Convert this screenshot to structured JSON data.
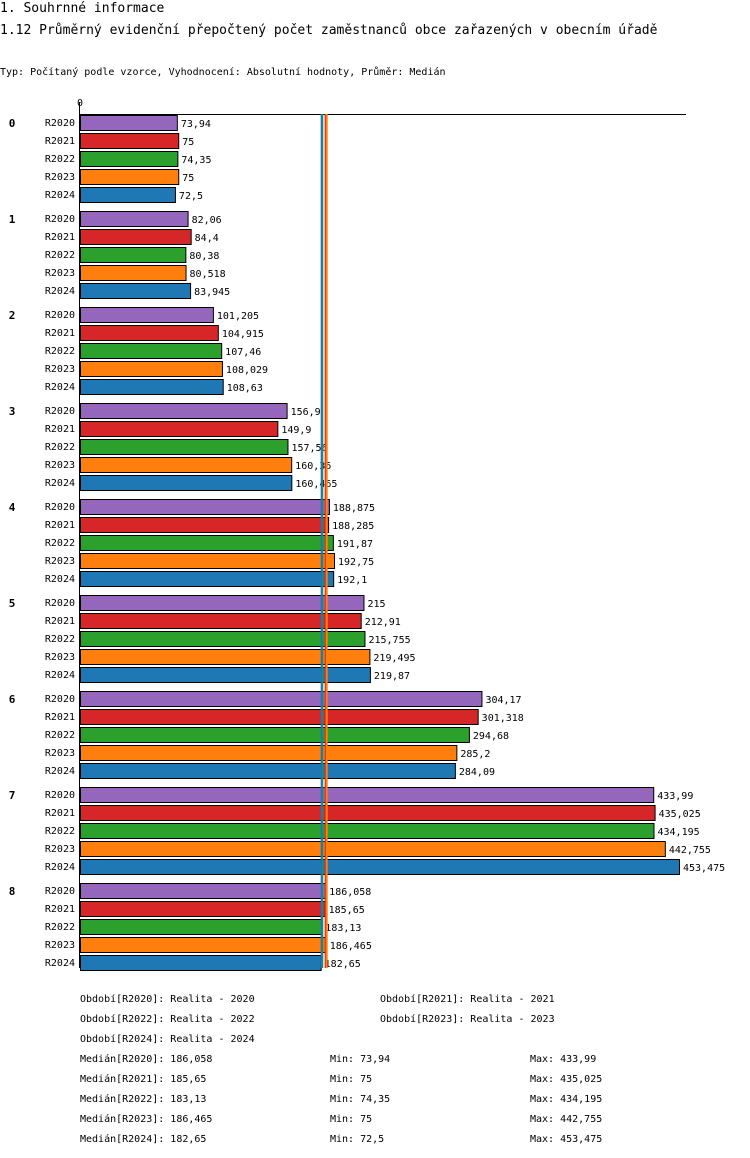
{
  "header": {
    "section_title": "1. Souhrnné informace",
    "chart_title": "1.12 Průměrný evidenční přepočtený počet zaměstnanců obce zařazených v obecním úřadě",
    "subtitle": "Typ: Počítaný podle vzorce, Vyhodnocení: Absolutní hodnoty, Průměr: Medián"
  },
  "chart_data": {
    "type": "bar",
    "orientation": "horizontal",
    "title": "1.12 Průměrný evidenční přepočtený počet zaměstnanců obce zařazených v obecním úřadě",
    "axis_zero_label": "0",
    "categories": [
      "0",
      "1",
      "2",
      "3",
      "4",
      "5",
      "6",
      "7",
      "8"
    ],
    "series": [
      {
        "name": "R2020",
        "color": "#9467bd",
        "values": [
          73.94,
          82.06,
          101.205,
          156.9,
          188.875,
          215,
          304.17,
          433.99,
          186.058
        ],
        "labels": [
          "73,94",
          "82,06",
          "101,205",
          "156,9",
          "188,875",
          "215",
          "304,17",
          "433,99",
          "186,058"
        ]
      },
      {
        "name": "R2021",
        "color": "#d62728",
        "values": [
          75,
          84.4,
          104.915,
          149.9,
          188.285,
          212.91,
          301.318,
          435.025,
          185.65
        ],
        "labels": [
          "75",
          "84,4",
          "104,915",
          "149,9",
          "188,285",
          "212,91",
          "301,318",
          "435,025",
          "185,65"
        ]
      },
      {
        "name": "R2022",
        "color": "#2ca02c",
        "values": [
          74.35,
          80.38,
          107.46,
          157.56,
          191.87,
          215.755,
          294.68,
          434.195,
          183.13
        ],
        "labels": [
          "74,35",
          "80,38",
          "107,46",
          "157,56",
          "191,87",
          "215,755",
          "294,68",
          "434,195",
          "183,13"
        ]
      },
      {
        "name": "R2023",
        "color": "#ff7f0e",
        "values": [
          75,
          80.518,
          108.029,
          160.36,
          192.75,
          219.495,
          285.2,
          442.755,
          186.465
        ],
        "labels": [
          "75",
          "80,518",
          "108,029",
          "160,36",
          "192,75",
          "219,495",
          "285,2",
          "442,755",
          "186,465"
        ]
      },
      {
        "name": "R2024",
        "color": "#1f77b4",
        "values": [
          72.5,
          83.945,
          108.63,
          160.465,
          192.1,
          219.87,
          284.09,
          453.475,
          182.65
        ],
        "labels": [
          "72,5",
          "83,945",
          "108,63",
          "160,465",
          "192,1",
          "219,87",
          "284,09",
          "453,475",
          "182,65"
        ]
      }
    ],
    "medians": [
      {
        "series": "R2020",
        "value": 186.058
      },
      {
        "series": "R2021",
        "value": 185.65
      },
      {
        "series": "R2022",
        "value": 183.13
      },
      {
        "series": "R2023",
        "value": 186.465
      },
      {
        "series": "R2024",
        "value": 182.65
      }
    ],
    "xlim": [
      0,
      453.475
    ]
  },
  "legend": {
    "periods": [
      "Období[R2020]: Realita - 2020",
      "Období[R2021]: Realita - 2021",
      "Období[R2022]: Realita - 2022",
      "Období[R2023]: Realita - 2023",
      "Období[R2024]: Realita - 2024"
    ],
    "stats": [
      {
        "median": "Medián[R2020]: 186,058",
        "min": "Min: 73,94",
        "max": "Max: 433,99"
      },
      {
        "median": "Medián[R2021]: 185,65",
        "min": "Min: 75",
        "max": "Max: 435,025"
      },
      {
        "median": "Medián[R2022]: 183,13",
        "min": "Min: 74,35",
        "max": "Max: 434,195"
      },
      {
        "median": "Medián[R2023]: 186,465",
        "min": "Min: 75",
        "max": "Max: 442,755"
      },
      {
        "median": "Medián[R2024]: 182,65",
        "min": "Min: 72,5",
        "max": "Max: 453,475"
      }
    ]
  }
}
